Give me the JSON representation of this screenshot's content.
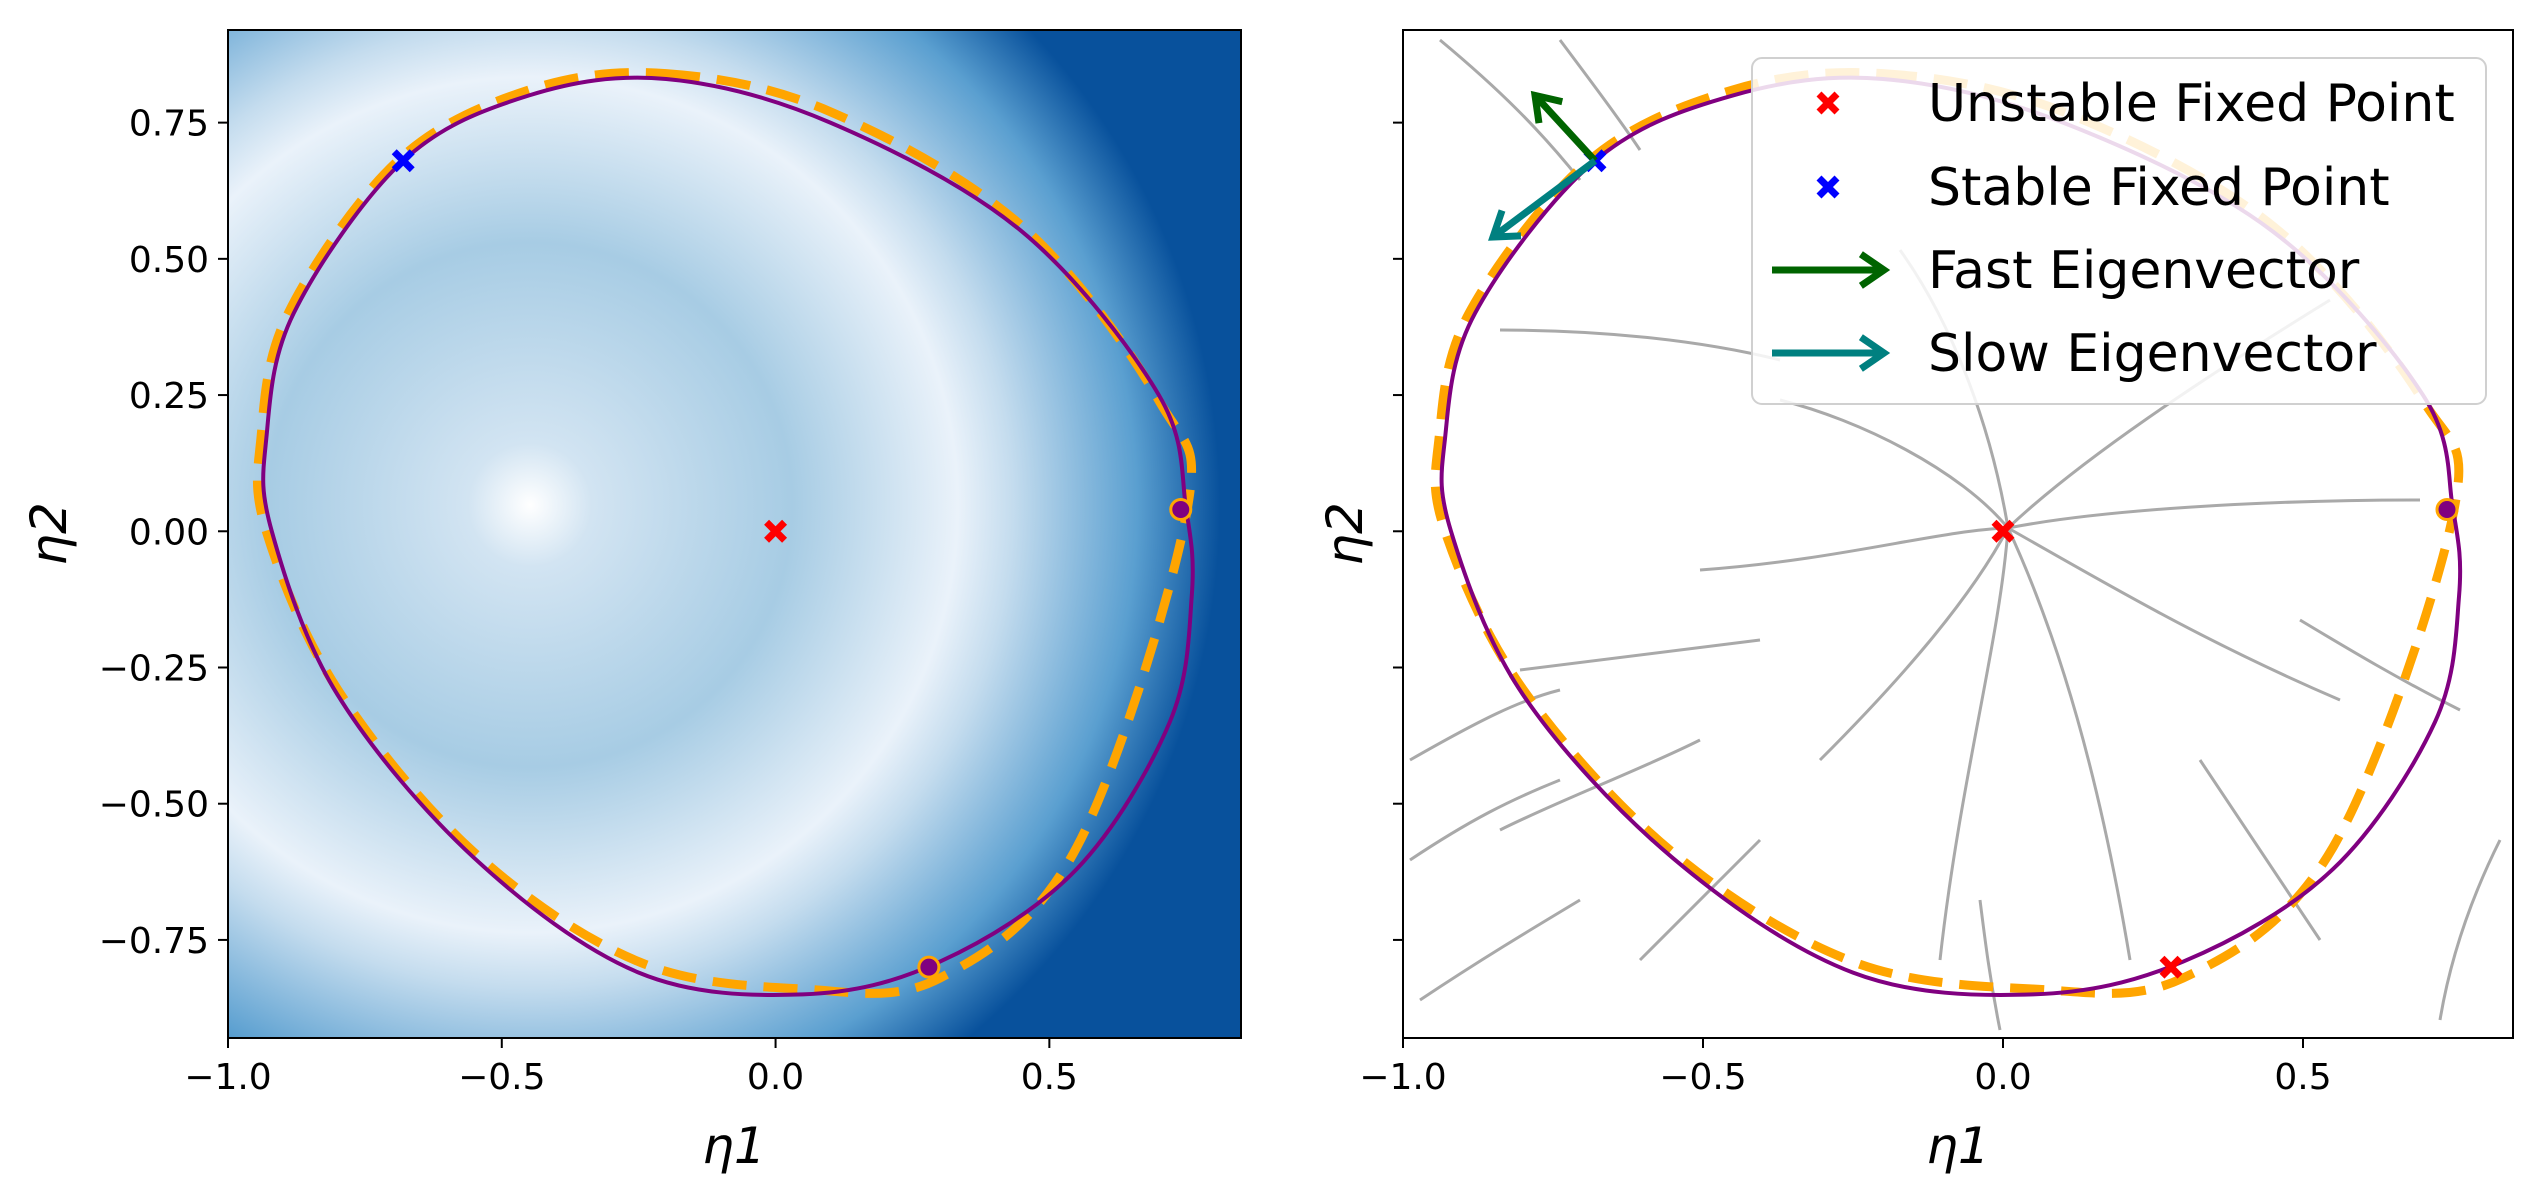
{
  "chart_data": [
    {
      "type": "heatmap",
      "panel": "left",
      "xlabel": "η1",
      "ylabel": "η2",
      "xlim": [
        -1.0,
        0.85
      ],
      "ylim": [
        -0.93,
        0.92
      ],
      "xticks": [
        -1.0,
        -0.5,
        0.0,
        0.5
      ],
      "xtick_labels": [
        "−1.0",
        "−0.5",
        "0.0",
        "0.5"
      ],
      "yticks": [
        0.75,
        0.5,
        0.25,
        0.0,
        -0.25,
        -0.5,
        -0.75
      ],
      "ytick_labels": [
        "0.75",
        "0.50",
        "0.25",
        "0.00",
        "−0.25",
        "−0.50",
        "−0.75"
      ],
      "colormap": "Blues",
      "limit_cycle": {
        "color": "#800080",
        "points": [
          [
            -0.2,
            0.83
          ],
          [
            0.1,
            0.75
          ],
          [
            0.45,
            0.55
          ],
          [
            0.7,
            0.25
          ],
          [
            0.75,
            0.04
          ],
          [
            0.76,
            -0.12
          ],
          [
            0.72,
            -0.35
          ],
          [
            0.55,
            -0.62
          ],
          [
            0.3,
            -0.79
          ],
          [
            0.05,
            -0.85
          ],
          [
            -0.25,
            -0.81
          ],
          [
            -0.55,
            -0.6
          ],
          [
            -0.8,
            -0.3
          ],
          [
            -0.92,
            0.0
          ],
          [
            -0.93,
            0.17
          ],
          [
            -0.88,
            0.4
          ],
          [
            -0.68,
            0.68
          ],
          [
            -0.45,
            0.8
          ]
        ]
      },
      "approximation": {
        "color": "#ffa500",
        "style": "dashed",
        "points": [
          [
            -0.2,
            0.84
          ],
          [
            0.1,
            0.77
          ],
          [
            0.45,
            0.56
          ],
          [
            0.7,
            0.24
          ],
          [
            0.75,
            0.03
          ],
          [
            0.55,
            -0.58
          ],
          [
            0.3,
            -0.82
          ],
          [
            0.05,
            -0.84
          ],
          [
            -0.25,
            -0.79
          ],
          [
            -0.55,
            -0.59
          ],
          [
            -0.8,
            -0.29
          ],
          [
            -0.93,
            0.0
          ],
          [
            -0.94,
            0.17
          ],
          [
            -0.89,
            0.4
          ],
          [
            -0.69,
            0.68
          ],
          [
            -0.45,
            0.81
          ]
        ]
      },
      "unstable_fixed_point": {
        "x": 0.0,
        "y": 0.0,
        "color": "#ff0000"
      },
      "stable_fixed_point": {
        "x": -0.68,
        "y": 0.68,
        "color": "#0000ff"
      },
      "cycle_markers": [
        {
          "x": 0.74,
          "y": 0.04
        },
        {
          "x": 0.28,
          "y": -0.8
        }
      ],
      "cycle_marker_color": "#800080"
    },
    {
      "type": "line",
      "panel": "right",
      "xlabel": "η1",
      "ylabel": "η2",
      "xlim": [
        -1.0,
        0.85
      ],
      "ylim": [
        -0.93,
        0.92
      ],
      "xticks": [
        -1.0,
        -0.5,
        0.0,
        0.5
      ],
      "xtick_labels": [
        "−1.0",
        "−0.5",
        "0.0",
        "0.5"
      ],
      "yticks": [
        0.75,
        0.5,
        0.25,
        0.0,
        -0.25,
        -0.5,
        -0.75
      ],
      "streamline_color": "#a9a9a9",
      "unstable_fixed_point": {
        "x": 0.0,
        "y": 0.0
      },
      "stable_fixed_point": {
        "x": -0.68,
        "y": 0.68
      },
      "saddle_point": {
        "x": 0.28,
        "y": -0.8
      },
      "cycle_marker": {
        "x": 0.74,
        "y": 0.04
      },
      "fast_eigenvector": {
        "from": [
          -0.68,
          0.68
        ],
        "to": [
          -0.78,
          0.8
        ],
        "color": "#006400"
      },
      "slow_eigenvector": {
        "from": [
          -0.68,
          0.68
        ],
        "to": [
          -0.85,
          0.54
        ],
        "color": "#008080"
      },
      "legend": {
        "placement": "top-right",
        "entries": [
          {
            "label": "Unstable Fixed Point",
            "marker": "x",
            "color": "#ff0000"
          },
          {
            "label": "Stable Fixed Point",
            "marker": "x",
            "color": "#0000ff"
          },
          {
            "label": "Fast Eigenvector",
            "marker": "arrow",
            "color": "#006400"
          },
          {
            "label": "Slow Eigenvector",
            "marker": "arrow",
            "color": "#008080"
          }
        ]
      }
    }
  ]
}
